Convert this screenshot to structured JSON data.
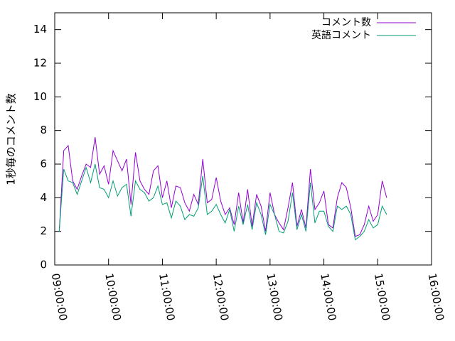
{
  "chart_data": {
    "type": "line",
    "ylabel": "1秒毎のコメント数",
    "x": [
      "09:05:00",
      "09:10:00",
      "09:15:00",
      "09:20:00",
      "09:25:00",
      "09:30:00",
      "09:35:00",
      "09:40:00",
      "09:45:00",
      "09:50:00",
      "09:55:00",
      "10:00:00",
      "10:05:00",
      "10:10:00",
      "10:15:00",
      "10:20:00",
      "10:25:00",
      "10:30:00",
      "10:35:00",
      "10:40:00",
      "10:45:00",
      "10:50:00",
      "10:55:00",
      "11:00:00",
      "11:05:00",
      "11:10:00",
      "11:15:00",
      "11:20:00",
      "11:25:00",
      "11:30:00",
      "11:35:00",
      "11:40:00",
      "11:45:00",
      "11:50:00",
      "11:55:00",
      "12:00:00",
      "12:05:00",
      "12:10:00",
      "12:15:00",
      "12:20:00",
      "12:25:00",
      "12:30:00",
      "12:35:00",
      "12:40:00",
      "12:45:00",
      "12:50:00",
      "12:55:00",
      "13:00:00",
      "13:05:00",
      "13:10:00",
      "13:15:00",
      "13:20:00",
      "13:25:00",
      "13:30:00",
      "13:35:00",
      "13:40:00",
      "13:45:00",
      "13:50:00",
      "13:55:00",
      "14:00:00",
      "14:05:00",
      "14:10:00",
      "14:15:00",
      "14:20:00",
      "14:25:00",
      "14:30:00",
      "14:35:00",
      "14:40:00",
      "14:45:00",
      "14:50:00",
      "14:55:00",
      "15:00:00",
      "15:05:00",
      "15:10:00"
    ],
    "series": [
      {
        "name": "コメント数",
        "color": "#9400d3",
        "values": [
          2.0,
          6.8,
          7.1,
          5.0,
          4.5,
          5.3,
          6.0,
          5.8,
          7.6,
          5.4,
          5.9,
          4.8,
          6.8,
          6.2,
          5.6,
          6.3,
          3.6,
          6.7,
          5.0,
          4.5,
          4.2,
          5.6,
          5.9,
          4.0,
          5.0,
          3.4,
          4.7,
          4.6,
          3.7,
          3.2,
          4.2,
          3.6,
          6.3,
          3.7,
          3.9,
          5.2,
          3.8,
          3.0,
          3.4,
          2.4,
          4.3,
          2.5,
          4.5,
          2.3,
          4.2,
          3.5,
          2.0,
          4.3,
          3.0,
          2.5,
          2.1,
          3.4,
          4.9,
          2.3,
          3.3,
          2.2,
          5.7,
          3.3,
          3.7,
          4.4,
          2.4,
          2.2,
          4.0,
          4.9,
          4.6,
          3.4,
          1.7,
          1.8,
          2.4,
          3.5,
          2.6,
          3.0,
          5.0,
          4.0
        ]
      },
      {
        "name": "英語コメント",
        "color": "#009e73",
        "values": [
          2.0,
          5.7,
          5.0,
          4.9,
          4.2,
          5.0,
          5.8,
          4.9,
          6.0,
          4.6,
          4.5,
          4.0,
          5.0,
          4.1,
          4.6,
          4.8,
          2.9,
          5.0,
          4.5,
          4.3,
          3.8,
          4.0,
          4.7,
          3.6,
          3.7,
          2.8,
          3.8,
          3.5,
          2.7,
          3.0,
          2.9,
          3.4,
          5.3,
          3.0,
          3.2,
          3.6,
          3.0,
          2.5,
          3.3,
          2.0,
          3.5,
          2.4,
          3.6,
          2.1,
          3.7,
          3.0,
          1.8,
          3.6,
          3.0,
          2.0,
          1.9,
          2.6,
          4.3,
          2.1,
          3.0,
          2.0,
          4.9,
          2.5,
          3.2,
          3.2,
          2.3,
          2.0,
          3.5,
          3.3,
          3.5,
          3.0,
          1.5,
          1.7,
          2.0,
          2.7,
          2.2,
          2.4,
          3.5,
          3.0
        ]
      }
    ],
    "xlim": [
      "09:00:00",
      "16:00:00"
    ],
    "xticks": [
      "09:00:00",
      "10:00:00",
      "11:00:00",
      "12:00:00",
      "13:00:00",
      "14:00:00",
      "15:00:00",
      "16:00:00"
    ],
    "ylim": [
      0,
      15
    ],
    "yticks": [
      0,
      2,
      4,
      6,
      8,
      10,
      12,
      14
    ],
    "grid": false,
    "legend": "top-right"
  }
}
